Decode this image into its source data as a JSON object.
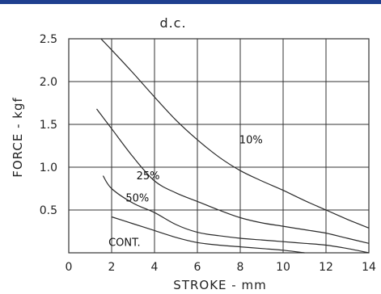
{
  "chart_data": {
    "type": "line",
    "title": "d.c.",
    "xlabel": "STROKE - mm",
    "ylabel": "FORCE - kgf",
    "xlim": [
      0,
      14
    ],
    "ylim": [
      0,
      2.5
    ],
    "xticks": [
      0,
      2,
      4,
      6,
      8,
      10,
      12,
      14
    ],
    "yticks": [
      0.5,
      1.0,
      1.5,
      2.0,
      2.5
    ],
    "xtick_labels": [
      "0",
      "2",
      "4",
      "6",
      "8",
      "10",
      "12",
      "14"
    ],
    "ytick_labels": [
      "0.5",
      "1.0",
      "1.5",
      "2.0",
      "2.5"
    ],
    "grid": true,
    "series": [
      {
        "name": "10%",
        "x": [
          1.5,
          2,
          3,
          4,
          5,
          6,
          7,
          8,
          9,
          10,
          11,
          12,
          13,
          14
        ],
        "y": [
          2.5,
          2.37,
          2.1,
          1.82,
          1.55,
          1.32,
          1.12,
          0.96,
          0.84,
          0.73,
          0.61,
          0.5,
          0.39,
          0.29
        ]
      },
      {
        "name": "25%",
        "x": [
          1.3,
          2,
          3,
          4,
          5,
          6,
          7,
          8,
          9,
          10,
          11,
          12,
          13,
          14
        ],
        "y": [
          1.68,
          1.45,
          1.12,
          0.84,
          0.7,
          0.6,
          0.5,
          0.41,
          0.35,
          0.31,
          0.27,
          0.23,
          0.17,
          0.11
        ]
      },
      {
        "name": "50%",
        "x": [
          1.6,
          2,
          3,
          4,
          5,
          6,
          7,
          8,
          9,
          10,
          11,
          12,
          13,
          14
        ],
        "y": [
          0.9,
          0.75,
          0.58,
          0.47,
          0.33,
          0.24,
          0.2,
          0.17,
          0.15,
          0.13,
          0.11,
          0.09,
          0.05,
          0.0
        ]
      },
      {
        "name": "CONT.",
        "x": [
          2,
          3,
          4,
          5,
          6,
          7,
          8,
          9,
          10,
          11
        ],
        "y": [
          0.42,
          0.34,
          0.26,
          0.18,
          0.12,
          0.09,
          0.07,
          0.05,
          0.03,
          0.0
        ]
      }
    ]
  },
  "colors": {
    "banner": "#1f3f8f",
    "line": "#2a2a2a",
    "grid": "#333333"
  }
}
